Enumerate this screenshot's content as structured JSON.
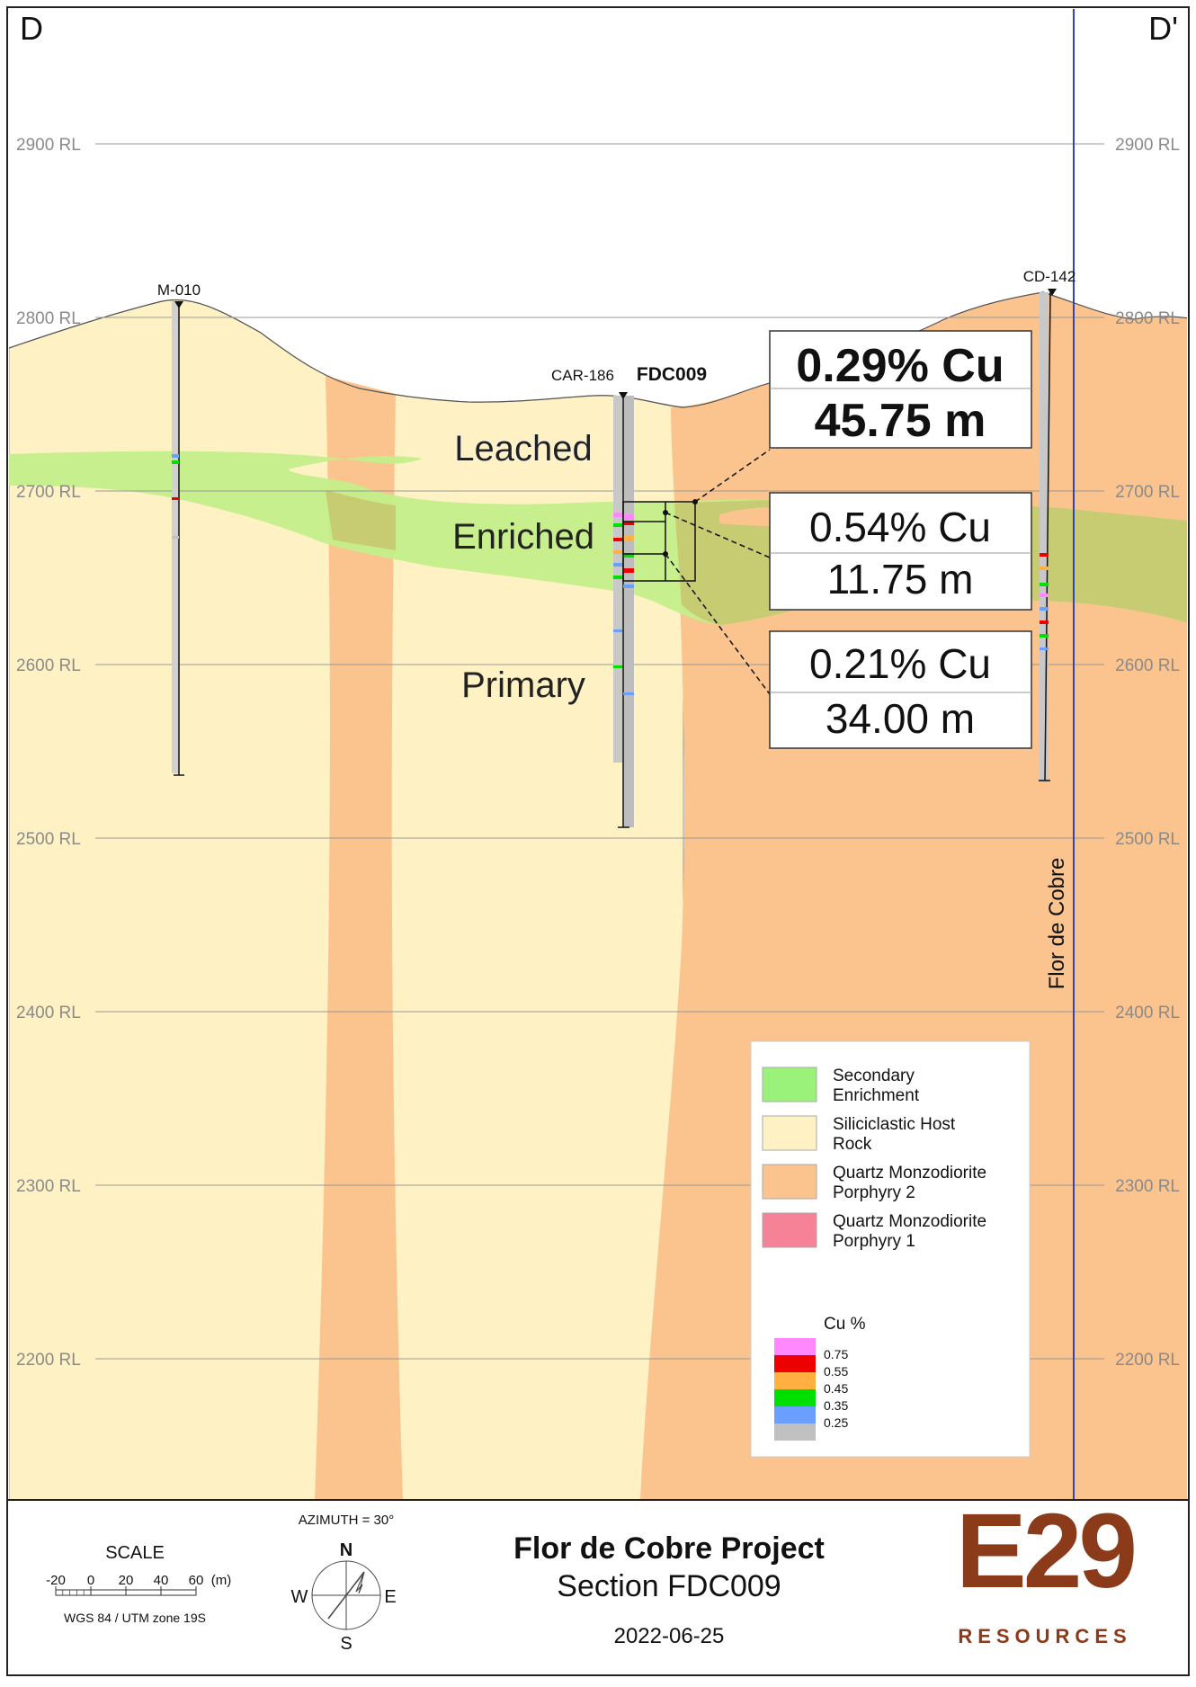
{
  "section_ends": {
    "left": "D",
    "right": "D'"
  },
  "rl_labels": [
    "2900 RL",
    "2800 RL",
    "2700 RL",
    "2600 RL",
    "2500 RL",
    "2400 RL",
    "2300 RL",
    "2200 RL"
  ],
  "holes": {
    "m010": "M-010",
    "car186": "CAR-186",
    "fdc009": "FDC009",
    "cd142": "CD-142"
  },
  "zones": {
    "leached": "Leached",
    "enriched": "Enriched",
    "primary": "Primary"
  },
  "intercepts": [
    {
      "grade": "0.29% Cu",
      "length": "45.75 m"
    },
    {
      "grade": "0.54% Cu",
      "length": "11.75 m"
    },
    {
      "grade": "0.21% Cu",
      "length": "34.00 m"
    }
  ],
  "boundary_label": "Flor de Cobre",
  "legend": {
    "items": [
      {
        "line1": "Secondary",
        "line2": "Enrichment",
        "color": "#9AF27A"
      },
      {
        "line1": "Siliciclastic Host",
        "line2": "Rock",
        "color": "#FEF2C4"
      },
      {
        "line1": "Quartz Monzodiorite",
        "line2": "Porphyry 2",
        "color": "#FBC38E"
      },
      {
        "line1": "Quartz Monzodiorite",
        "line2": "Porphyry 1",
        "color": "#F58296"
      }
    ],
    "cu_title": "Cu %",
    "cu_ticks": [
      "0.75",
      "0.55",
      "0.45",
      "0.35",
      "0.25"
    ],
    "cu_colors": [
      "#FF88FF",
      "#EE0000",
      "#FFB040",
      "#00E000",
      "#6A9EFF",
      "#C0C0C0"
    ]
  },
  "footer": {
    "scale_title": "SCALE",
    "scale_ticks": [
      "-20",
      "0",
      "20",
      "40",
      "60"
    ],
    "scale_unit": "(m)",
    "datum": "WGS 84 / UTM zone 19S",
    "azimuth": "AZIMUTH = 30°",
    "compass": {
      "n": "N",
      "e": "E",
      "s": "S",
      "w": "W"
    },
    "title": "Flor de Cobre Project",
    "subtitle": "Section FDC009",
    "date": "2022-06-25",
    "logo_main": "E29",
    "logo_sub": "RESOURCES"
  },
  "colors": {
    "host": "#FEF2C4",
    "porphyry2": "#FBC38E",
    "enrichment": "#C4EE8A",
    "enrichment_on_porphyry": "#C7CB72",
    "boundary_line": "#3344BB",
    "logo": "#8B3A1A"
  }
}
